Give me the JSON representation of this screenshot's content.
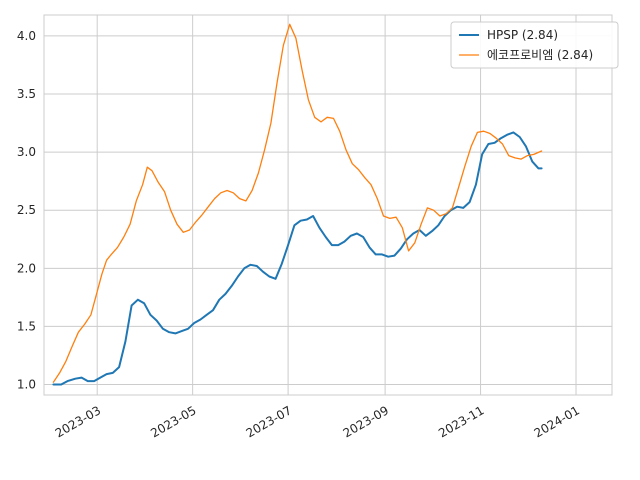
{
  "chart_data": {
    "type": "line",
    "title": "",
    "xlabel": "",
    "ylabel": "",
    "grid": true,
    "legend_placement": "top-right",
    "xlim": [
      "2023-01-26",
      "2024-01-24"
    ],
    "ylim": [
      0.91,
      4.18
    ],
    "x_ticks": [
      {
        "date": "2023-03-01",
        "label": "2023-03"
      },
      {
        "date": "2023-05-01",
        "label": "2023-05"
      },
      {
        "date": "2023-07-01",
        "label": "2023-07"
      },
      {
        "date": "2023-09-01",
        "label": "2023-09"
      },
      {
        "date": "2023-11-01",
        "label": "2023-11"
      },
      {
        "date": "2024-01-01",
        "label": "2024-01"
      }
    ],
    "y_ticks": [
      {
        "value": 1.0,
        "label": "1.0"
      },
      {
        "value": 1.5,
        "label": "1.5"
      },
      {
        "value": 2.0,
        "label": "2.0"
      },
      {
        "value": 2.5,
        "label": "2.5"
      },
      {
        "value": 3.0,
        "label": "3.0"
      },
      {
        "value": 3.5,
        "label": "3.5"
      },
      {
        "value": 4.0,
        "label": "4.0"
      }
    ],
    "series": [
      {
        "name": "HPSP (2.84)",
        "color": "#1f77b4",
        "points": [
          [
            "2023-02-01",
            1.0
          ],
          [
            "2023-02-06",
            1.0
          ],
          [
            "2023-02-10",
            1.03
          ],
          [
            "2023-02-15",
            1.05
          ],
          [
            "2023-02-19",
            1.06
          ],
          [
            "2023-02-23",
            1.03
          ],
          [
            "2023-02-27",
            1.03
          ],
          [
            "2023-03-03",
            1.06
          ],
          [
            "2023-03-07",
            1.09
          ],
          [
            "2023-03-11",
            1.1
          ],
          [
            "2023-03-15",
            1.15
          ],
          [
            "2023-03-19",
            1.37
          ],
          [
            "2023-03-23",
            1.68
          ],
          [
            "2023-03-27",
            1.73
          ],
          [
            "2023-03-31",
            1.7
          ],
          [
            "2023-04-04",
            1.6
          ],
          [
            "2023-04-08",
            1.55
          ],
          [
            "2023-04-12",
            1.48
          ],
          [
            "2023-04-16",
            1.45
          ],
          [
            "2023-04-20",
            1.44
          ],
          [
            "2023-04-24",
            1.46
          ],
          [
            "2023-04-28",
            1.48
          ],
          [
            "2023-05-02",
            1.53
          ],
          [
            "2023-05-06",
            1.56
          ],
          [
            "2023-05-10",
            1.6
          ],
          [
            "2023-05-14",
            1.64
          ],
          [
            "2023-05-18",
            1.73
          ],
          [
            "2023-05-22",
            1.78
          ],
          [
            "2023-05-26",
            1.85
          ],
          [
            "2023-05-30",
            1.93
          ],
          [
            "2023-06-03",
            2.0
          ],
          [
            "2023-06-07",
            2.03
          ],
          [
            "2023-06-11",
            2.02
          ],
          [
            "2023-06-15",
            1.97
          ],
          [
            "2023-06-19",
            1.93
          ],
          [
            "2023-06-23",
            1.91
          ],
          [
            "2023-06-27",
            2.04
          ],
          [
            "2023-07-01",
            2.2
          ],
          [
            "2023-07-05",
            2.37
          ],
          [
            "2023-07-09",
            2.41
          ],
          [
            "2023-07-13",
            2.42
          ],
          [
            "2023-07-17",
            2.45
          ],
          [
            "2023-07-21",
            2.35
          ],
          [
            "2023-07-25",
            2.27
          ],
          [
            "2023-07-29",
            2.2
          ],
          [
            "2023-08-02",
            2.2
          ],
          [
            "2023-08-06",
            2.23
          ],
          [
            "2023-08-10",
            2.28
          ],
          [
            "2023-08-14",
            2.3
          ],
          [
            "2023-08-18",
            2.27
          ],
          [
            "2023-08-22",
            2.18
          ],
          [
            "2023-08-26",
            2.12
          ],
          [
            "2023-08-30",
            2.12
          ],
          [
            "2023-09-03",
            2.1
          ],
          [
            "2023-09-07",
            2.11
          ],
          [
            "2023-09-11",
            2.17
          ],
          [
            "2023-09-15",
            2.25
          ],
          [
            "2023-09-19",
            2.3
          ],
          [
            "2023-09-23",
            2.33
          ],
          [
            "2023-09-27",
            2.28
          ],
          [
            "2023-10-01",
            2.32
          ],
          [
            "2023-10-05",
            2.37
          ],
          [
            "2023-10-09",
            2.45
          ],
          [
            "2023-10-13",
            2.5
          ],
          [
            "2023-10-17",
            2.53
          ],
          [
            "2023-10-21",
            2.52
          ],
          [
            "2023-10-25",
            2.57
          ],
          [
            "2023-10-29",
            2.72
          ],
          [
            "2023-11-02",
            2.98
          ],
          [
            "2023-11-06",
            3.07
          ],
          [
            "2023-11-10",
            3.08
          ],
          [
            "2023-11-14",
            3.12
          ],
          [
            "2023-11-18",
            3.15
          ],
          [
            "2023-11-22",
            3.17
          ],
          [
            "2023-11-26",
            3.13
          ],
          [
            "2023-11-30",
            3.05
          ],
          [
            "2023-12-04",
            2.92
          ],
          [
            "2023-12-08",
            2.86
          ],
          [
            "2023-12-10",
            2.86
          ]
        ]
      },
      {
        "name": "에코프로비엠 (2.84)",
        "color": "#ff7f0e",
        "points": [
          [
            "2023-02-01",
            1.02
          ],
          [
            "2023-02-05",
            1.1
          ],
          [
            "2023-02-09",
            1.2
          ],
          [
            "2023-02-13",
            1.33
          ],
          [
            "2023-02-17",
            1.45
          ],
          [
            "2023-02-21",
            1.52
          ],
          [
            "2023-02-25",
            1.6
          ],
          [
            "2023-03-01",
            1.8
          ],
          [
            "2023-03-04",
            1.95
          ],
          [
            "2023-03-07",
            2.07
          ],
          [
            "2023-03-10",
            2.12
          ],
          [
            "2023-03-14",
            2.18
          ],
          [
            "2023-03-18",
            2.27
          ],
          [
            "2023-03-22",
            2.38
          ],
          [
            "2023-03-26",
            2.58
          ],
          [
            "2023-03-30",
            2.72
          ],
          [
            "2023-04-02",
            2.87
          ],
          [
            "2023-04-05",
            2.84
          ],
          [
            "2023-04-09",
            2.74
          ],
          [
            "2023-04-13",
            2.66
          ],
          [
            "2023-04-17",
            2.5
          ],
          [
            "2023-04-21",
            2.38
          ],
          [
            "2023-04-25",
            2.31
          ],
          [
            "2023-04-29",
            2.33
          ],
          [
            "2023-05-03",
            2.4
          ],
          [
            "2023-05-07",
            2.46
          ],
          [
            "2023-05-11",
            2.53
          ],
          [
            "2023-05-15",
            2.6
          ],
          [
            "2023-05-19",
            2.65
          ],
          [
            "2023-05-23",
            2.67
          ],
          [
            "2023-05-27",
            2.65
          ],
          [
            "2023-05-31",
            2.6
          ],
          [
            "2023-06-04",
            2.58
          ],
          [
            "2023-06-08",
            2.67
          ],
          [
            "2023-06-12",
            2.82
          ],
          [
            "2023-06-16",
            3.02
          ],
          [
            "2023-06-20",
            3.25
          ],
          [
            "2023-06-24",
            3.6
          ],
          [
            "2023-06-28",
            3.92
          ],
          [
            "2023-07-02",
            4.1
          ],
          [
            "2023-07-06",
            3.98
          ],
          [
            "2023-07-10",
            3.7
          ],
          [
            "2023-07-14",
            3.45
          ],
          [
            "2023-07-18",
            3.3
          ],
          [
            "2023-07-22",
            3.26
          ],
          [
            "2023-07-26",
            3.3
          ],
          [
            "2023-07-30",
            3.29
          ],
          [
            "2023-08-03",
            3.18
          ],
          [
            "2023-08-07",
            3.02
          ],
          [
            "2023-08-11",
            2.9
          ],
          [
            "2023-08-15",
            2.85
          ],
          [
            "2023-08-19",
            2.78
          ],
          [
            "2023-08-23",
            2.72
          ],
          [
            "2023-08-27",
            2.6
          ],
          [
            "2023-08-31",
            2.45
          ],
          [
            "2023-09-04",
            2.43
          ],
          [
            "2023-09-08",
            2.44
          ],
          [
            "2023-09-12",
            2.35
          ],
          [
            "2023-09-16",
            2.15
          ],
          [
            "2023-09-20",
            2.22
          ],
          [
            "2023-09-24",
            2.38
          ],
          [
            "2023-09-28",
            2.52
          ],
          [
            "2023-10-02",
            2.5
          ],
          [
            "2023-10-06",
            2.45
          ],
          [
            "2023-10-10",
            2.47
          ],
          [
            "2023-10-14",
            2.52
          ],
          [
            "2023-10-18",
            2.7
          ],
          [
            "2023-10-22",
            2.88
          ],
          [
            "2023-10-26",
            3.05
          ],
          [
            "2023-10-30",
            3.17
          ],
          [
            "2023-11-03",
            3.18
          ],
          [
            "2023-11-07",
            3.16
          ],
          [
            "2023-11-11",
            3.12
          ],
          [
            "2023-11-15",
            3.07
          ],
          [
            "2023-11-19",
            2.97
          ],
          [
            "2023-11-23",
            2.95
          ],
          [
            "2023-11-27",
            2.94
          ],
          [
            "2023-12-01",
            2.97
          ],
          [
            "2023-12-05",
            2.98
          ],
          [
            "2023-12-10",
            3.01
          ]
        ]
      }
    ]
  }
}
